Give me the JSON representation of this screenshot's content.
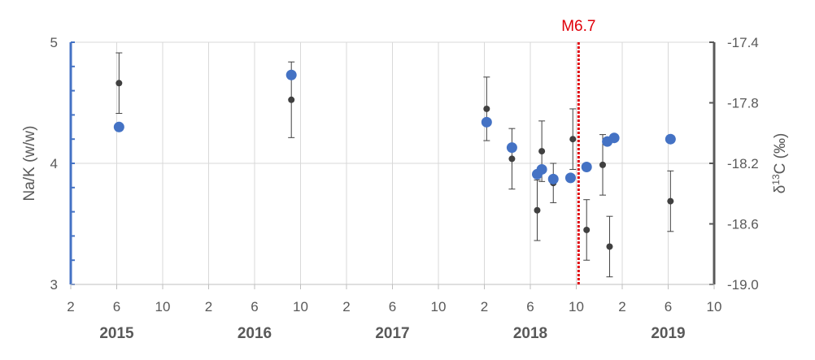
{
  "chart_data": {
    "type": "scatter",
    "annotation": {
      "label": "M6.7",
      "x_month": 44.2,
      "color": "#e0000a"
    },
    "x_axis": {
      "range_months": [
        0,
        56
      ],
      "ticks": [
        {
          "m": 0,
          "label": "2"
        },
        {
          "m": 4,
          "label": "6"
        },
        {
          "m": 8,
          "label": "10"
        },
        {
          "m": 12,
          "label": "2"
        },
        {
          "m": 16,
          "label": "6"
        },
        {
          "m": 20,
          "label": "10"
        },
        {
          "m": 24,
          "label": "2"
        },
        {
          "m": 28,
          "label": "6"
        },
        {
          "m": 32,
          "label": "10"
        },
        {
          "m": 36,
          "label": "2"
        },
        {
          "m": 40,
          "label": "6"
        },
        {
          "m": 44,
          "label": "10"
        },
        {
          "m": 48,
          "label": "2"
        },
        {
          "m": 52,
          "label": "6"
        },
        {
          "m": 56,
          "label": "10"
        }
      ],
      "years": [
        {
          "m": 4,
          "label": "2015"
        },
        {
          "m": 16,
          "label": "2016"
        },
        {
          "m": 28,
          "label": "2017"
        },
        {
          "m": 40,
          "label": "2018"
        },
        {
          "m": 52,
          "label": "2019"
        }
      ]
    },
    "y_left": {
      "label": "Na/K (w/w)",
      "range": [
        3,
        5
      ],
      "ticks": [
        {
          "v": 3,
          "label": "3"
        },
        {
          "v": 4,
          "label": "4"
        },
        {
          "v": 5,
          "label": "5"
        }
      ],
      "minor_step": 0.2,
      "color": "#4472c4"
    },
    "y_right": {
      "label_prefix": "δ",
      "label_sup": "13",
      "label_suffix": "C (‰)",
      "range": [
        -19.0,
        -17.4
      ],
      "ticks": [
        {
          "v": -17.4,
          "label": "-17.4"
        },
        {
          "v": -17.8,
          "label": "-17.8"
        },
        {
          "v": -18.2,
          "label": "-18.2"
        },
        {
          "v": -18.6,
          "label": "-18.6"
        },
        {
          "v": -19.0,
          "label": "-19.0"
        }
      ],
      "color": "#595959"
    },
    "series": [
      {
        "name": "Na/K",
        "axis": "left",
        "color": "#4472c4",
        "points": [
          {
            "x": 4.2,
            "y": 4.3
          },
          {
            "x": 19.2,
            "y": 4.73
          },
          {
            "x": 36.2,
            "y": 4.34
          },
          {
            "x": 38.4,
            "y": 4.13
          },
          {
            "x": 40.6,
            "y": 3.91
          },
          {
            "x": 41.0,
            "y": 3.95
          },
          {
            "x": 42.0,
            "y": 3.87
          },
          {
            "x": 43.5,
            "y": 3.88
          },
          {
            "x": 44.9,
            "y": 3.97
          },
          {
            "x": 46.7,
            "y": 4.18
          },
          {
            "x": 47.3,
            "y": 4.21
          },
          {
            "x": 52.2,
            "y": 4.2
          }
        ]
      },
      {
        "name": "δ13C",
        "axis": "right",
        "color": "#404040",
        "points": [
          {
            "x": 4.2,
            "y": -17.67,
            "err": 0.2
          },
          {
            "x": 19.2,
            "y": -17.78,
            "err": 0.25
          },
          {
            "x": 36.2,
            "y": -17.84,
            "err": 0.21
          },
          {
            "x": 38.4,
            "y": -18.17,
            "err": 0.2
          },
          {
            "x": 40.6,
            "y": -18.51,
            "err": 0.2
          },
          {
            "x": 41.0,
            "y": -18.12,
            "err": 0.2
          },
          {
            "x": 42.0,
            "y": -18.33,
            "err": 0.13
          },
          {
            "x": 43.7,
            "y": -18.04,
            "err": 0.2
          },
          {
            "x": 44.9,
            "y": -18.64,
            "err": 0.2
          },
          {
            "x": 46.3,
            "y": -18.21,
            "err": 0.2
          },
          {
            "x": 46.9,
            "y": -18.75,
            "err": 0.2
          },
          {
            "x": 52.2,
            "y": -18.45,
            "err": 0.2
          }
        ]
      }
    ]
  }
}
